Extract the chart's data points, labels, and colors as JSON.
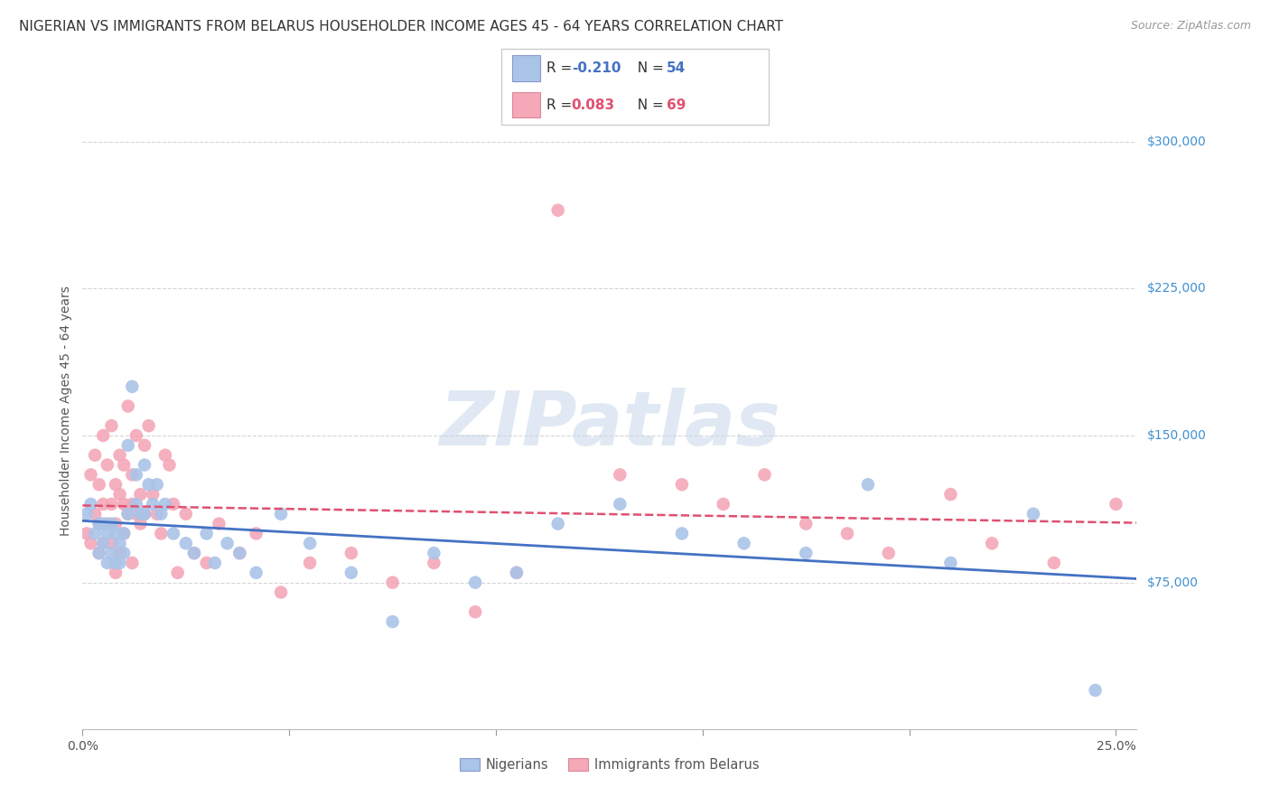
{
  "title": "NIGERIAN VS IMMIGRANTS FROM BELARUS HOUSEHOLDER INCOME AGES 45 - 64 YEARS CORRELATION CHART",
  "source": "Source: ZipAtlas.com",
  "ylabel": "Householder Income Ages 45 - 64 years",
  "ytick_labels": [
    "$75,000",
    "$150,000",
    "$225,000",
    "$300,000"
  ],
  "ytick_values": [
    75000,
    150000,
    225000,
    300000
  ],
  "ylim": [
    0,
    325000
  ],
  "xlim": [
    0.0,
    0.255
  ],
  "watermark": "ZIPatlas",
  "nigerians": {
    "color": "#aac4e8",
    "line_color": "#4472c4",
    "line_style": "solid",
    "x": [
      0.001,
      0.002,
      0.003,
      0.004,
      0.004,
      0.005,
      0.005,
      0.006,
      0.006,
      0.007,
      0.007,
      0.008,
      0.008,
      0.009,
      0.009,
      0.01,
      0.01,
      0.011,
      0.011,
      0.012,
      0.013,
      0.013,
      0.014,
      0.015,
      0.015,
      0.016,
      0.017,
      0.018,
      0.019,
      0.02,
      0.022,
      0.025,
      0.027,
      0.03,
      0.032,
      0.035,
      0.038,
      0.042,
      0.048,
      0.055,
      0.065,
      0.075,
      0.085,
      0.095,
      0.105,
      0.115,
      0.13,
      0.145,
      0.16,
      0.175,
      0.19,
      0.21,
      0.23,
      0.245
    ],
    "y": [
      110000,
      115000,
      100000,
      105000,
      90000,
      95000,
      105000,
      100000,
      85000,
      90000,
      105000,
      85000,
      100000,
      95000,
      85000,
      90000,
      100000,
      145000,
      110000,
      175000,
      130000,
      115000,
      110000,
      135000,
      110000,
      125000,
      115000,
      125000,
      110000,
      115000,
      100000,
      95000,
      90000,
      100000,
      85000,
      95000,
      90000,
      80000,
      110000,
      95000,
      80000,
      55000,
      90000,
      75000,
      80000,
      105000,
      115000,
      100000,
      95000,
      90000,
      125000,
      85000,
      110000,
      20000
    ]
  },
  "belarus": {
    "color": "#f4a8b8",
    "line_color": "#e05070",
    "line_style": "dashed",
    "x": [
      0.001,
      0.002,
      0.002,
      0.003,
      0.003,
      0.004,
      0.004,
      0.004,
      0.005,
      0.005,
      0.005,
      0.006,
      0.006,
      0.007,
      0.007,
      0.007,
      0.008,
      0.008,
      0.008,
      0.009,
      0.009,
      0.009,
      0.01,
      0.01,
      0.01,
      0.011,
      0.011,
      0.012,
      0.012,
      0.012,
      0.013,
      0.013,
      0.014,
      0.014,
      0.015,
      0.015,
      0.016,
      0.017,
      0.018,
      0.019,
      0.02,
      0.021,
      0.022,
      0.023,
      0.025,
      0.027,
      0.03,
      0.033,
      0.038,
      0.042,
      0.048,
      0.055,
      0.065,
      0.075,
      0.085,
      0.095,
      0.105,
      0.115,
      0.13,
      0.145,
      0.155,
      0.165,
      0.175,
      0.185,
      0.195,
      0.21,
      0.22,
      0.235,
      0.25
    ],
    "y": [
      100000,
      130000,
      95000,
      110000,
      140000,
      125000,
      105000,
      90000,
      150000,
      115000,
      95000,
      135000,
      105000,
      155000,
      115000,
      95000,
      125000,
      105000,
      80000,
      120000,
      140000,
      90000,
      115000,
      135000,
      100000,
      165000,
      110000,
      130000,
      115000,
      85000,
      150000,
      110000,
      120000,
      105000,
      145000,
      110000,
      155000,
      120000,
      110000,
      100000,
      140000,
      135000,
      115000,
      80000,
      110000,
      90000,
      85000,
      105000,
      90000,
      100000,
      70000,
      85000,
      90000,
      75000,
      85000,
      60000,
      80000,
      265000,
      130000,
      125000,
      115000,
      130000,
      105000,
      100000,
      90000,
      120000,
      95000,
      85000,
      115000
    ]
  },
  "grid_color": "#d5d5d5",
  "background_color": "#ffffff",
  "title_fontsize": 11,
  "axis_label_fontsize": 10,
  "tick_fontsize": 10,
  "source_fontsize": 9,
  "right_tick_color": "#4090d0"
}
